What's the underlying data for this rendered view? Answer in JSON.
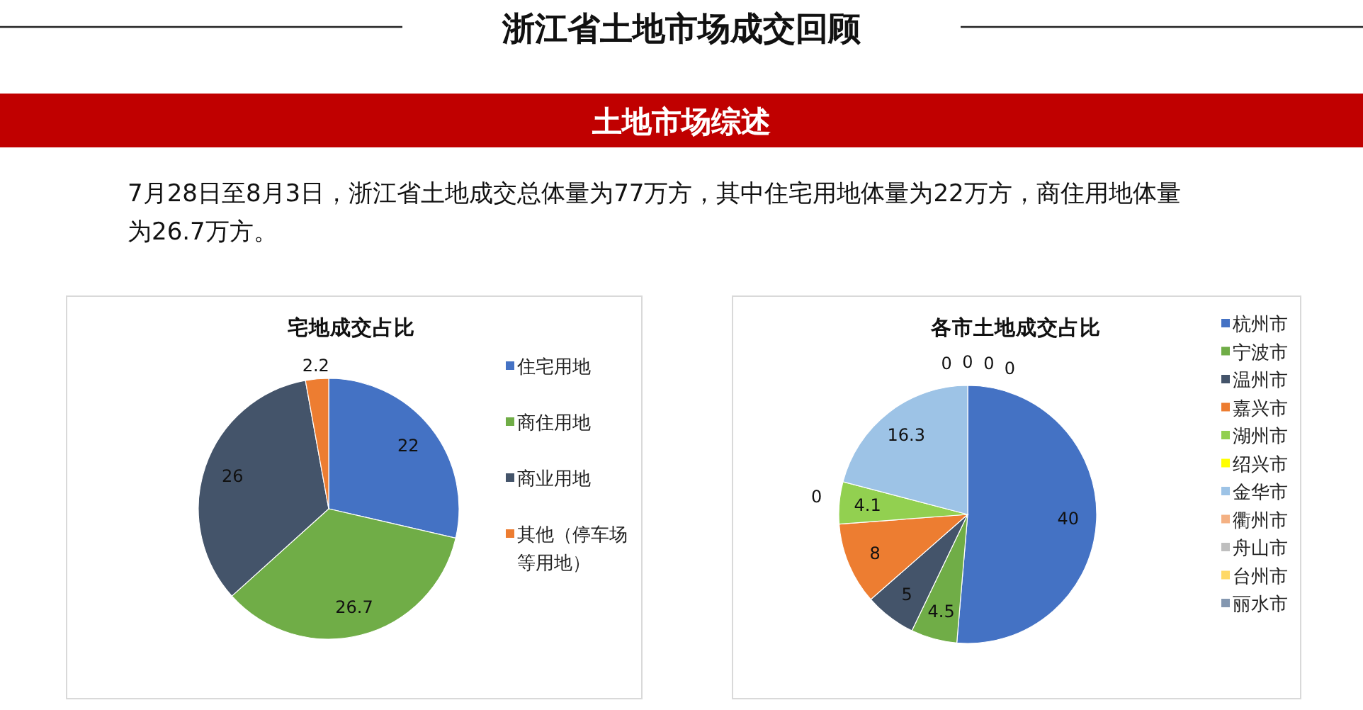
{
  "chart_data": [
    {
      "type": "other",
      "title": "浙江省土地市场成交回顾",
      "subtitle": "土地市场综述",
      "annotations": [
        "7月28日至8月3日，浙江省土地成交总体量为77万方，其中住宅用地体量为22万方，商住用地体量为26.7万方。"
      ]
    },
    {
      "type": "pie",
      "title": "宅地成交占比",
      "categories": [
        "住宅用地",
        "商住用地",
        "商业用地",
        "其他（停车场等用地）"
      ],
      "values": [
        22,
        26.7,
        26,
        2.2
      ],
      "colors": [
        "#4472c4",
        "#70ad47",
        "#44546a",
        "#ed7d31"
      ],
      "data_labels": true,
      "legend": "right"
    },
    {
      "type": "pie",
      "title": "各市土地成交占比",
      "categories": [
        "杭州市",
        "宁波市",
        "温州市",
        "嘉兴市",
        "湖州市",
        "绍兴市",
        "金华市",
        "衢州市",
        "舟山市",
        "台州市",
        "丽水市"
      ],
      "values": [
        40,
        4.5,
        5,
        8,
        4.1,
        0,
        16.3,
        0,
        0,
        0,
        0
      ],
      "colors": [
        "#4472c4",
        "#70ad47",
        "#44546a",
        "#ed7d31",
        "#92d050",
        "#ffff00",
        "#9dc3e6",
        "#f4b183",
        "#bfbfbf",
        "#ffd966",
        "#8497b0"
      ],
      "value_labels": [
        "40",
        "4.5",
        "5",
        "8",
        "4.1",
        "0",
        "16.3",
        "0",
        "0",
        "0",
        "0"
      ],
      "legend": "right"
    }
  ]
}
